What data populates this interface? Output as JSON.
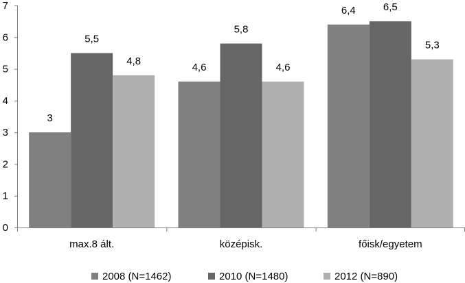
{
  "chart_data": {
    "type": "bar",
    "title": "",
    "xlabel": "",
    "ylabel": "",
    "ylim": [
      0,
      7
    ],
    "yticks": [
      "0",
      "1",
      "2",
      "3",
      "4",
      "5",
      "6",
      "7"
    ],
    "categories": [
      "max.8 ált.",
      "középisk.",
      "főisk/egyetem"
    ],
    "series": [
      {
        "name": "2008 (N=1462)",
        "color": "#808080",
        "values": [
          3,
          4.6,
          6.4
        ],
        "labels": [
          "3",
          "4,6",
          "6,4"
        ]
      },
      {
        "name": "2010 (N=1480)",
        "color": "#666666",
        "values": [
          5.5,
          5.8,
          6.5
        ],
        "labels": [
          "5,5",
          "5,8",
          "6,5"
        ]
      },
      {
        "name": "2012 (N=890)",
        "color": "#b0b0b0",
        "values": [
          4.8,
          4.6,
          5.3
        ],
        "labels": [
          "4,8",
          "4,6",
          "5,3"
        ]
      }
    ],
    "legend_position": "bottom",
    "grid": false
  }
}
